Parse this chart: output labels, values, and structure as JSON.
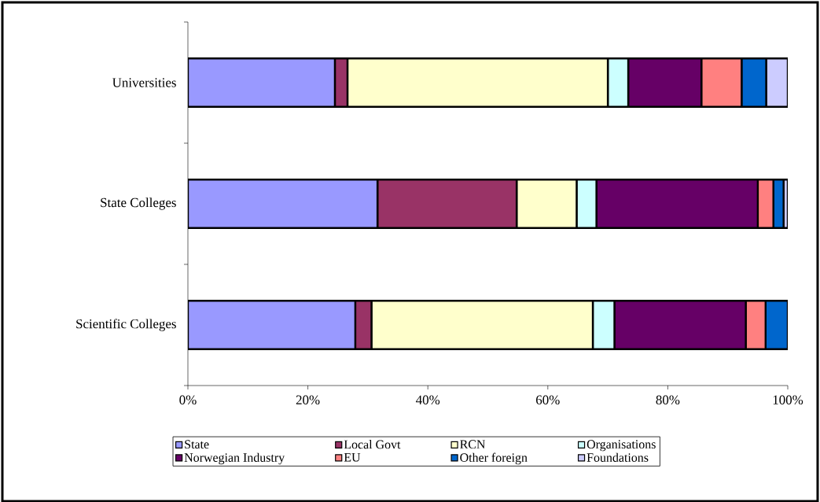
{
  "chart_data": {
    "type": "bar",
    "orientation": "horizontal",
    "stacked": true,
    "categories": [
      "Universities",
      "State Colleges",
      "Scientific Colleges"
    ],
    "series": [
      {
        "name": "State",
        "color": "#9999ff",
        "values": [
          24.5,
          31.6,
          27.9
        ]
      },
      {
        "name": "Local Govt",
        "color": "#993366",
        "values": [
          2.1,
          23.2,
          2.7
        ]
      },
      {
        "name": "RCN",
        "color": "#ffffcc",
        "values": [
          43.4,
          10.0,
          36.9
        ]
      },
      {
        "name": "Organisations",
        "color": "#ccffff",
        "values": [
          3.4,
          3.3,
          3.6
        ]
      },
      {
        "name": "Norwegian Industry",
        "color": "#660066",
        "values": [
          12.2,
          26.9,
          21.9
        ]
      },
      {
        "name": "EU",
        "color": "#ff8080",
        "values": [
          6.7,
          2.6,
          3.3
        ]
      },
      {
        "name": "Other foreign",
        "color": "#0066cc",
        "values": [
          4.1,
          1.7,
          3.7
        ]
      },
      {
        "name": "Foundations",
        "color": "#ccccff",
        "values": [
          3.6,
          0.7,
          0
        ]
      }
    ],
    "xlim": [
      0,
      100
    ],
    "xticks": [
      {
        "value": 0,
        "label": "0%"
      },
      {
        "value": 20,
        "label": "20%"
      },
      {
        "value": 40,
        "label": "40%"
      },
      {
        "value": 60,
        "label": "60%"
      },
      {
        "value": 80,
        "label": "80%"
      },
      {
        "value": 100,
        "label": "100%"
      }
    ],
    "legend": "bottom",
    "grid": false
  }
}
